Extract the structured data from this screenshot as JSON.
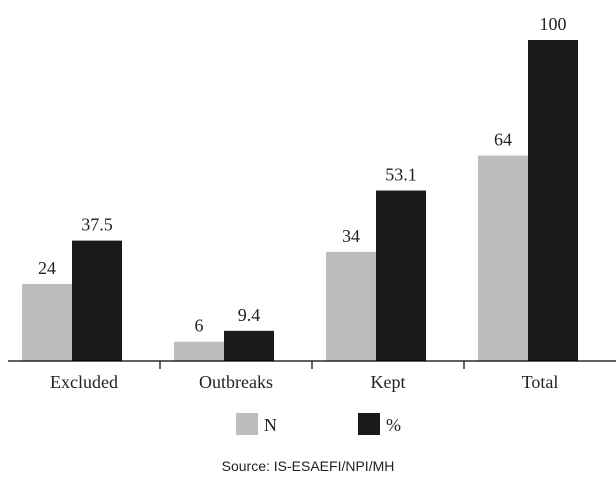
{
  "chart_data": {
    "type": "bar",
    "categories": [
      "Excluded",
      "Outbreaks",
      "Kept",
      "Total"
    ],
    "series": [
      {
        "name": "N",
        "values": [
          24,
          6,
          34,
          64
        ],
        "labels": [
          "24",
          "6",
          "34",
          "64"
        ],
        "color": "#bdbdbf"
      },
      {
        "name": "%",
        "values": [
          37.5,
          9.4,
          53.1,
          100
        ],
        "labels": [
          "37.5",
          "9.4",
          "53.1",
          "100"
        ],
        "color": "#1a1a1a"
      }
    ],
    "ylim": [
      0,
      100
    ],
    "grid": false,
    "legend_position": "bottom"
  },
  "source_note": "Source: IS-ESAEFI/NPI/MH"
}
